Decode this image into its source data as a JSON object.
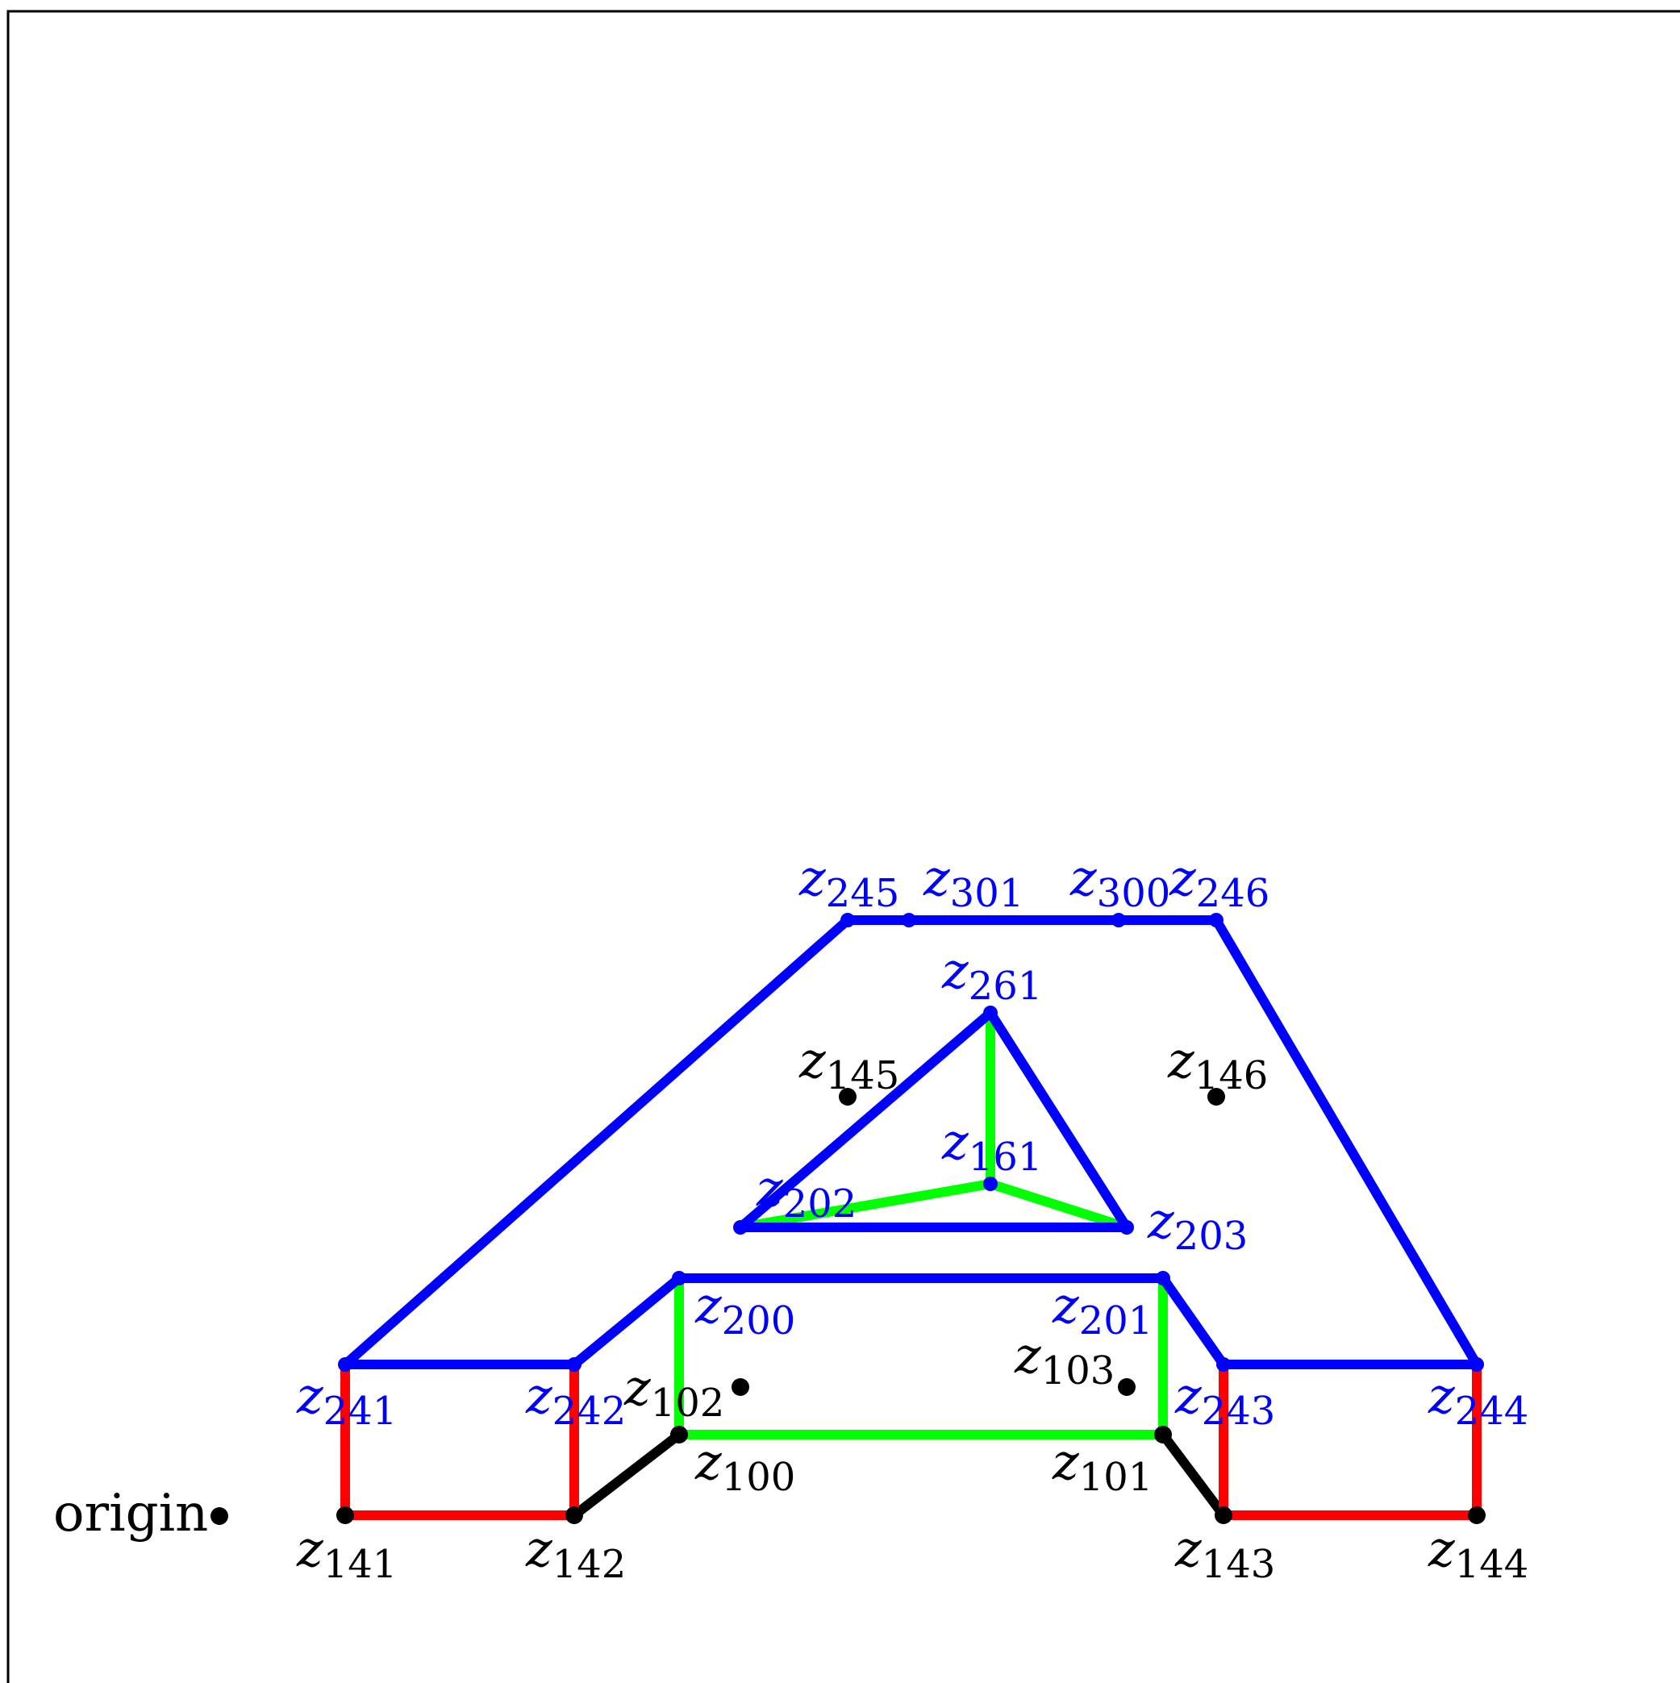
{
  "colors": {
    "frame": "#000000",
    "blue": "#0000ff",
    "red": "#ff0000",
    "green": "#00ff00",
    "black": "#000000"
  },
  "origin_label": "origin",
  "points": {
    "origin": {
      "color": "black"
    },
    "z141": {
      "letter": "z",
      "sub": "141",
      "color": "black"
    },
    "z142": {
      "letter": "z",
      "sub": "142",
      "color": "black"
    },
    "z143": {
      "letter": "z",
      "sub": "143",
      "color": "black"
    },
    "z144": {
      "letter": "z",
      "sub": "144",
      "color": "black"
    },
    "z241": {
      "letter": "z",
      "sub": "241",
      "color": "blue"
    },
    "z242": {
      "letter": "z",
      "sub": "242",
      "color": "blue"
    },
    "z243": {
      "letter": "z",
      "sub": "243",
      "color": "blue"
    },
    "z244": {
      "letter": "z",
      "sub": "244",
      "color": "blue"
    },
    "z245": {
      "letter": "z",
      "sub": "245",
      "color": "blue"
    },
    "z246": {
      "letter": "z",
      "sub": "246",
      "color": "blue"
    },
    "z300": {
      "letter": "z",
      "sub": "300",
      "color": "blue"
    },
    "z301": {
      "letter": "z",
      "sub": "301",
      "color": "blue"
    },
    "z200": {
      "letter": "z",
      "sub": "200",
      "color": "blue"
    },
    "z201": {
      "letter": "z",
      "sub": "201",
      "color": "blue"
    },
    "z202": {
      "letter": "z",
      "sub": "202",
      "color": "blue"
    },
    "z203": {
      "letter": "z",
      "sub": "203",
      "color": "blue"
    },
    "z261": {
      "letter": "z",
      "sub": "261",
      "color": "blue"
    },
    "z161": {
      "letter": "z",
      "sub": "161",
      "color": "blue"
    },
    "z100": {
      "letter": "z",
      "sub": "100",
      "color": "black"
    },
    "z101": {
      "letter": "z",
      "sub": "101",
      "color": "black"
    },
    "z102": {
      "letter": "z",
      "sub": "102",
      "color": "black"
    },
    "z103": {
      "letter": "z",
      "sub": "103",
      "color": "black"
    },
    "z145": {
      "letter": "z",
      "sub": "145",
      "color": "black"
    },
    "z146": {
      "letter": "z",
      "sub": "146",
      "color": "black"
    }
  },
  "edges": [
    {
      "from": "z241",
      "to": "z245",
      "color": "blue"
    },
    {
      "from": "z245",
      "to": "z301",
      "color": "blue"
    },
    {
      "from": "z301",
      "to": "z300",
      "color": "blue"
    },
    {
      "from": "z300",
      "to": "z246",
      "color": "blue"
    },
    {
      "from": "z246",
      "to": "z244",
      "color": "blue"
    },
    {
      "from": "z241",
      "to": "z242",
      "color": "blue"
    },
    {
      "from": "z242",
      "to": "z200",
      "color": "blue"
    },
    {
      "from": "z200",
      "to": "z201",
      "color": "blue"
    },
    {
      "from": "z201",
      "to": "z243",
      "color": "blue"
    },
    {
      "from": "z243",
      "to": "z244",
      "color": "blue"
    },
    {
      "from": "z202",
      "to": "z261",
      "color": "blue"
    },
    {
      "from": "z261",
      "to": "z203",
      "color": "blue"
    },
    {
      "from": "z202",
      "to": "z203",
      "color": "blue"
    },
    {
      "from": "z241",
      "to": "z141",
      "color": "red"
    },
    {
      "from": "z141",
      "to": "z142",
      "color": "red"
    },
    {
      "from": "z142",
      "to": "z242",
      "color": "red"
    },
    {
      "from": "z243",
      "to": "z143",
      "color": "red"
    },
    {
      "from": "z143",
      "to": "z144",
      "color": "red"
    },
    {
      "from": "z144",
      "to": "z244",
      "color": "red"
    },
    {
      "from": "z200",
      "to": "z100",
      "color": "green"
    },
    {
      "from": "z100",
      "to": "z101",
      "color": "green"
    },
    {
      "from": "z101",
      "to": "z201",
      "color": "green"
    },
    {
      "from": "z261",
      "to": "z161",
      "color": "green"
    },
    {
      "from": "z161",
      "to": "z202",
      "color": "green"
    },
    {
      "from": "z161",
      "to": "z203",
      "color": "green"
    },
    {
      "from": "z142",
      "to": "z100",
      "color": "black"
    },
    {
      "from": "z101",
      "to": "z143",
      "color": "black"
    }
  ]
}
